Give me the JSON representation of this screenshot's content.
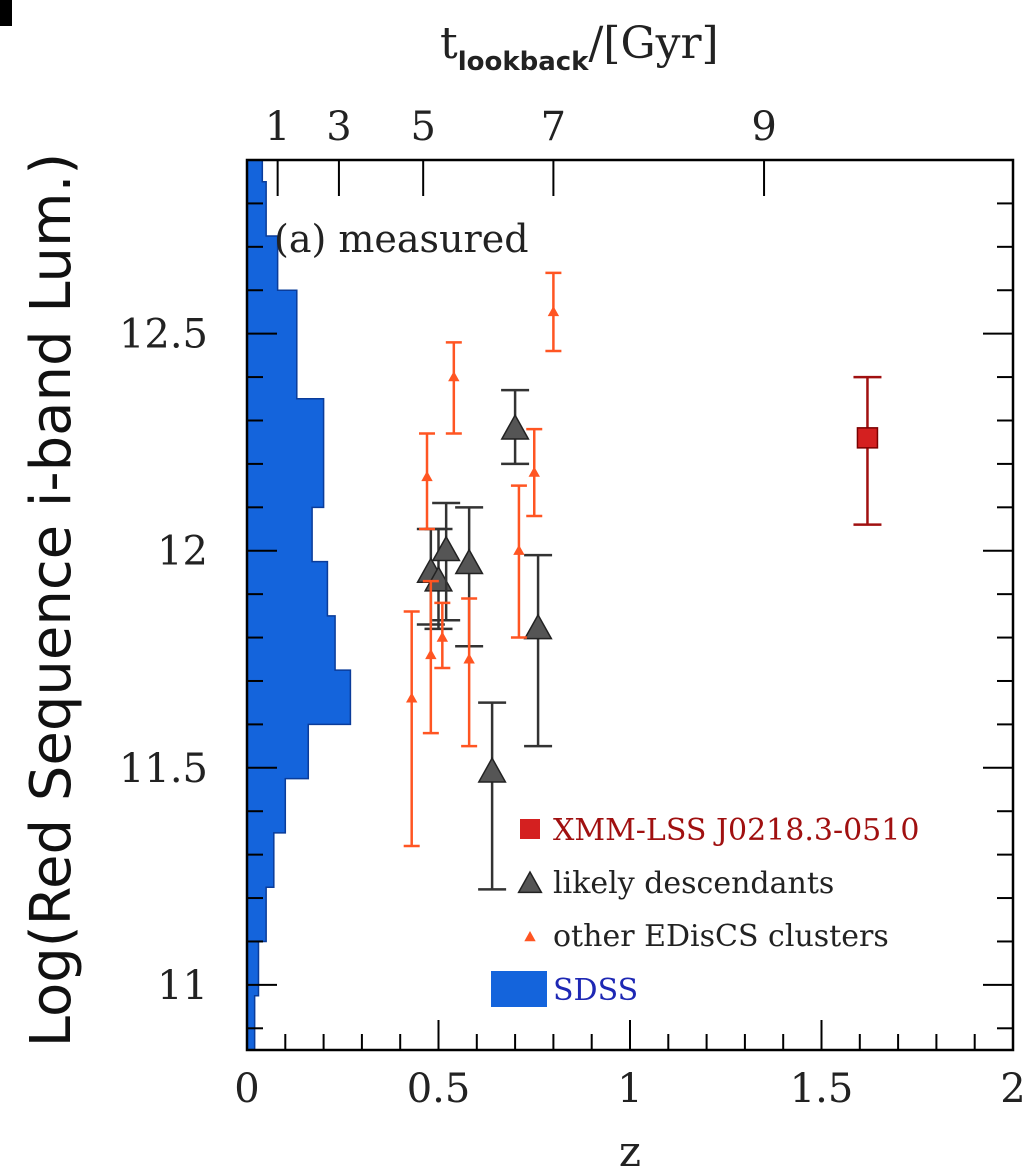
{
  "chart_data": {
    "type": "scatter",
    "panel_label": "(a) measured",
    "xlabel": "z",
    "ylabel": "Log(Red Sequence i-band Lum.)",
    "top_axis": {
      "label_main": "t",
      "label_sub": "lookback",
      "label_rest": "/[Gyr]",
      "ticks": [
        {
          "label": "1",
          "z": 0.08
        },
        {
          "label": "3",
          "z": 0.24
        },
        {
          "label": "5",
          "z": 0.46
        },
        {
          "label": "7",
          "z": 0.8
        },
        {
          "label": "9",
          "z": 1.35
        }
      ]
    },
    "xlim": [
      0,
      2
    ],
    "ylim": [
      10.85,
      12.9
    ],
    "x_ticks": [
      {
        "value": 0,
        "label": "0"
      },
      {
        "value": 0.5,
        "label": "0.5"
      },
      {
        "value": 1,
        "label": "1"
      },
      {
        "value": 1.5,
        "label": "1.5"
      },
      {
        "value": 2,
        "label": "2"
      }
    ],
    "y_ticks": [
      {
        "value": 11,
        "label": "11"
      },
      {
        "value": 11.5,
        "label": "11.5"
      },
      {
        "value": 12,
        "label": "12"
      },
      {
        "value": 12.5,
        "label": "12.5"
      }
    ],
    "series": [
      {
        "name": "XMM-LSS J0218.3-0510",
        "marker": "square",
        "color": "#d42020",
        "errcolor": "#a01010",
        "points": [
          {
            "x": 1.62,
            "y": 12.26,
            "lo": 12.06,
            "hi": 12.4
          }
        ]
      },
      {
        "name": "likely descendants",
        "marker": "triangle",
        "color": "#555555",
        "errcolor": "#333333",
        "points": [
          {
            "x": 0.48,
            "y": 11.95,
            "lo": 11.83,
            "hi": 12.05
          },
          {
            "x": 0.5,
            "y": 11.93,
            "lo": 11.82,
            "hi": 12.05
          },
          {
            "x": 0.52,
            "y": 12.0,
            "lo": 11.84,
            "hi": 12.11
          },
          {
            "x": 0.58,
            "y": 11.97,
            "lo": 11.78,
            "hi": 12.1
          },
          {
            "x": 0.64,
            "y": 11.49,
            "lo": 11.22,
            "hi": 11.65
          },
          {
            "x": 0.7,
            "y": 12.28,
            "lo": 12.2,
            "hi": 12.37
          },
          {
            "x": 0.76,
            "y": 11.82,
            "lo": 11.55,
            "hi": 11.99
          }
        ]
      },
      {
        "name": "other EDisCS clusters",
        "marker": "small-triangle",
        "color": "#ff5522",
        "errcolor": "#ff5522",
        "points": [
          {
            "x": 0.43,
            "y": 11.66,
            "lo": 11.32,
            "hi": 11.86
          },
          {
            "x": 0.47,
            "y": 12.17,
            "lo": 12.05,
            "hi": 12.27
          },
          {
            "x": 0.48,
            "y": 11.76,
            "lo": 11.58,
            "hi": 11.93
          },
          {
            "x": 0.51,
            "y": 11.8,
            "lo": 11.73,
            "hi": 11.88
          },
          {
            "x": 0.54,
            "y": 12.4,
            "lo": 12.27,
            "hi": 12.48
          },
          {
            "x": 0.58,
            "y": 11.75,
            "lo": 11.55,
            "hi": 11.89
          },
          {
            "x": 0.71,
            "y": 12.0,
            "lo": 11.8,
            "hi": 12.15
          },
          {
            "x": 0.75,
            "y": 12.18,
            "lo": 12.08,
            "hi": 12.28
          },
          {
            "x": 0.8,
            "y": 12.55,
            "lo": 12.46,
            "hi": 12.64
          }
        ]
      }
    ],
    "histogram": {
      "name": "SDSS",
      "color": "#1464dc",
      "bin_width": 0.125,
      "start": 10.85,
      "values": [
        0.02,
        0.03,
        0.05,
        0.07,
        0.1,
        0.16,
        0.27,
        0.23,
        0.21,
        0.17,
        0.2,
        0.2,
        0.13,
        0.13,
        0.08,
        0.05,
        0.04,
        0.03,
        0.02,
        0.01
      ]
    },
    "legend": {
      "placement": "bottom-right",
      "items": [
        {
          "label": "XMM-LSS J0218.3-0510",
          "marker": "square",
          "color": "#d42020",
          "text_color": "#a01010"
        },
        {
          "label": "likely descendants",
          "marker": "triangle",
          "color": "#555555",
          "text_color": "#222222"
        },
        {
          "label": "other EDisCS clusters",
          "marker": "small-triangle",
          "color": "#ff5522",
          "text_color": "#222222"
        },
        {
          "label": "SDSS",
          "marker": "box",
          "color": "#1464dc",
          "text_color": "#1e28b4"
        }
      ]
    }
  }
}
